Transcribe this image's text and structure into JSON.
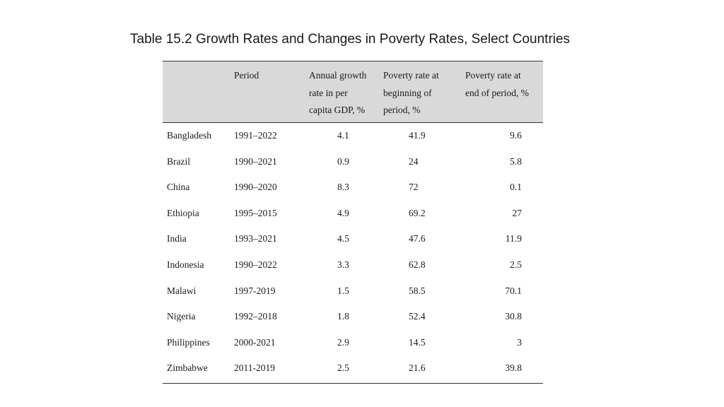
{
  "title": "Table 15.2 Growth Rates and Changes in Poverty Rates, Select Countries",
  "table": {
    "headers": [
      "",
      "Period",
      "Annual growth rate in per capita GDP, %",
      "Poverty rate at beginning of period, %",
      "Poverty rate at end of period, %"
    ],
    "header_lines": {
      "period": [
        "Period"
      ],
      "growth": [
        "Annual growth",
        "rate in per",
        "capita GDP, %"
      ],
      "begin": [
        "Poverty rate at",
        "beginning of",
        "period, %"
      ],
      "end": [
        "Poverty rate at",
        "end of period, %"
      ]
    },
    "rows": [
      {
        "country": "Bangladesh",
        "period": "1991–2022",
        "growth": "4.1",
        "begin": "41.9",
        "end": "9.6"
      },
      {
        "country": "Brazil",
        "period": "1990–2021",
        "growth": "0.9",
        "begin": "24",
        "end": "5.8"
      },
      {
        "country": "China",
        "period": "1990–2020",
        "growth": "8.3",
        "begin": "72",
        "end": "0.1"
      },
      {
        "country": "Ethiopia",
        "period": "1995–2015",
        "growth": "4.9",
        "begin": "69.2",
        "end": "27"
      },
      {
        "country": "India",
        "period": "1993–2021",
        "growth": "4.5",
        "begin": "47.6",
        "end": "11.9"
      },
      {
        "country": "Indonesia",
        "period": "1990–2022",
        "growth": "3.3",
        "begin": "62.8",
        "end": "2.5"
      },
      {
        "country": "Malawi",
        "period": "1997-2019",
        "growth": "1.5",
        "begin": "58.5",
        "end": "70.1"
      },
      {
        "country": "Nigeria",
        "period": "1992–2018",
        "growth": "1.8",
        "begin": "52.4",
        "end": "30.8"
      },
      {
        "country": "Philippines",
        "period": "2000-2021",
        "growth": "2.9",
        "begin": "14.5",
        "end": "3"
      },
      {
        "country": "Zimbabwe",
        "period": "2011-2019",
        "growth": "2.5",
        "begin": "21.6",
        "end": "39.8"
      }
    ]
  }
}
